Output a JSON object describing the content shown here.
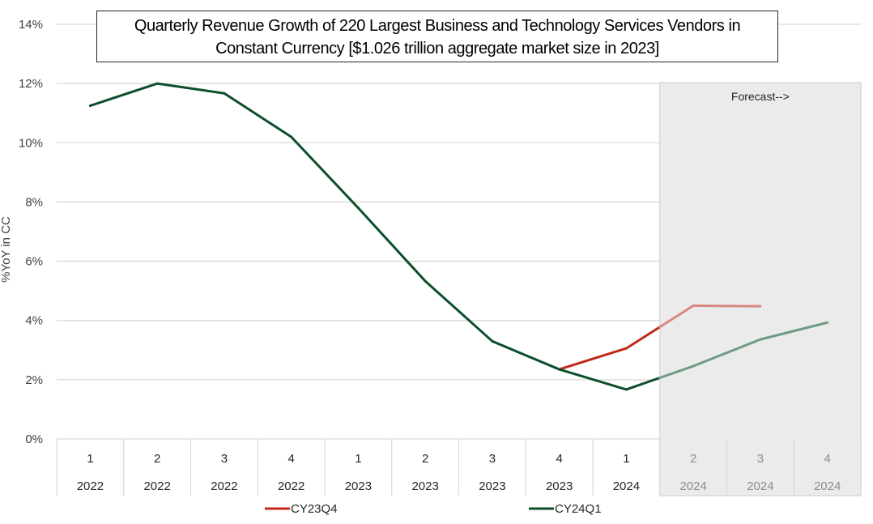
{
  "chart_data": {
    "type": "line",
    "title": "Quarterly Revenue Growth of 220 Largest Business and Technology Services Vendors in Constant Currency  [$1.026 trillion aggregate market size in 2023]",
    "title_lines": [
      "Quarterly Revenue Growth of 220 Largest Business and Technology Services Vendors in",
      "Constant Currency  [$1.026 trillion aggregate market size in 2023]"
    ],
    "xlabel": "",
    "ylabel": "%YoY in CC",
    "ylim": [
      0,
      14
    ],
    "y_ticks": [
      0,
      2,
      4,
      6,
      8,
      10,
      12,
      14
    ],
    "y_tick_labels": [
      "0%",
      "2%",
      "4%",
      "6%",
      "8%",
      "10%",
      "12%",
      "14%"
    ],
    "grid": true,
    "categories": [
      {
        "quarter": "1",
        "year": "2022"
      },
      {
        "quarter": "2",
        "year": "2022"
      },
      {
        "quarter": "3",
        "year": "2022"
      },
      {
        "quarter": "4",
        "year": "2022"
      },
      {
        "quarter": "1",
        "year": "2023"
      },
      {
        "quarter": "2",
        "year": "2023"
      },
      {
        "quarter": "3",
        "year": "2023"
      },
      {
        "quarter": "4",
        "year": "2023"
      },
      {
        "quarter": "1",
        "year": "2024"
      },
      {
        "quarter": "2",
        "year": "2024"
      },
      {
        "quarter": "3",
        "year": "2024"
      },
      {
        "quarter": "4",
        "year": "2024"
      }
    ],
    "forecast": {
      "label": "Forecast-->",
      "start_index": 9,
      "end_index": 11,
      "shade_color": "#ebebeb"
    },
    "series": [
      {
        "name": "CY23Q4",
        "color": "#c0291a",
        "forecast_color": "#d98880",
        "values": [
          null,
          null,
          null,
          null,
          null,
          null,
          null,
          2.35,
          3.06,
          4.5,
          4.48,
          null
        ]
      },
      {
        "name": "CY24Q1",
        "color": "#0d4f2b",
        "forecast_color": "#6e9b82",
        "values": [
          11.25,
          12.0,
          11.67,
          10.2,
          7.8,
          5.33,
          3.3,
          2.35,
          1.67,
          2.46,
          3.36,
          3.93
        ]
      }
    ],
    "legend": {
      "position": "bottom",
      "entries": [
        "CY23Q4",
        "CY24Q1"
      ]
    }
  }
}
